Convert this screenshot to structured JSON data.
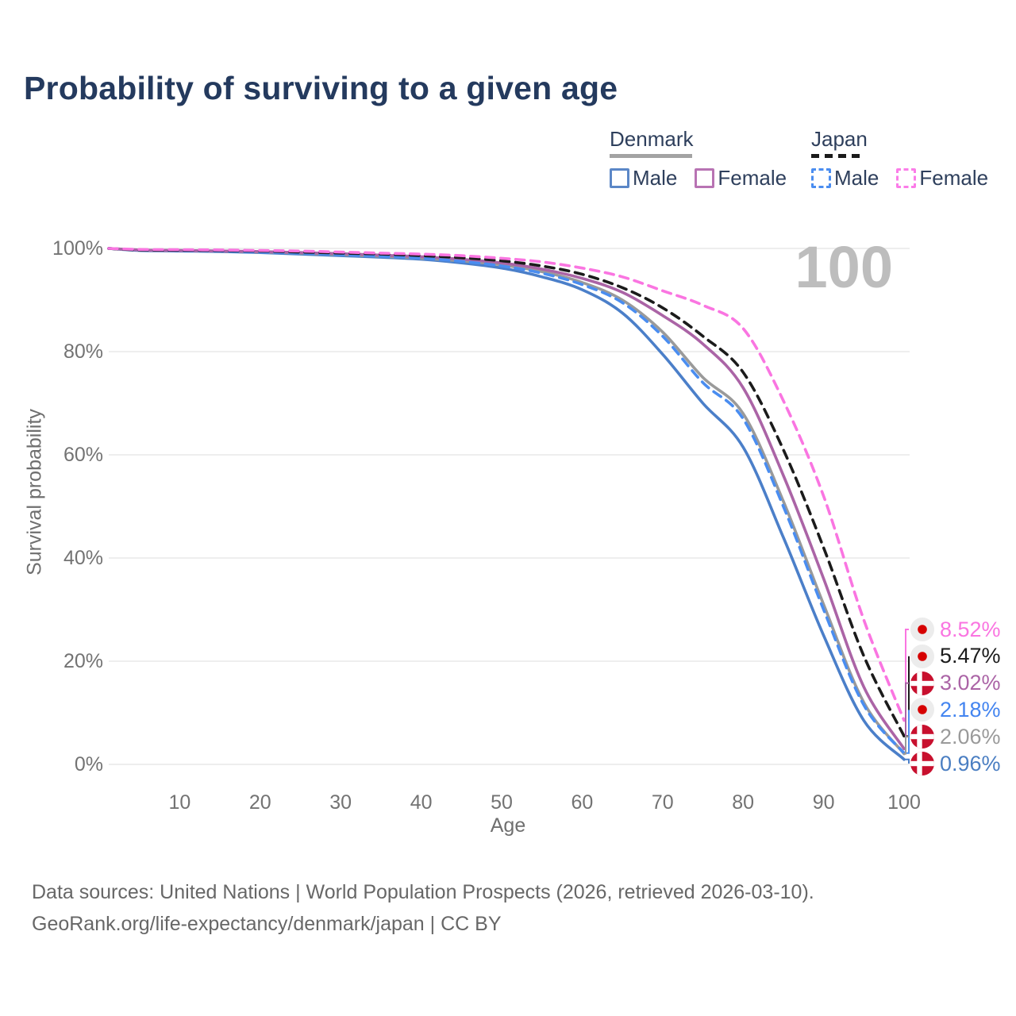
{
  "title": "Probability of surviving to a given age",
  "watermark_age": "100",
  "legend": {
    "groups": [
      {
        "country": "Denmark",
        "line_style": "solid",
        "underline_color": "#a3a3a3",
        "items": [
          {
            "label": "Male",
            "color": "#5b87c7"
          },
          {
            "label": "Female",
            "color": "#b873b3"
          }
        ]
      },
      {
        "country": "Japan",
        "line_style": "dashed",
        "underline_color": "#1b1b1b",
        "items": [
          {
            "label": "Male",
            "color": "#4a8df0"
          },
          {
            "label": "Female",
            "color": "#fb7ce8"
          }
        ]
      }
    ]
  },
  "axes": {
    "y_label": "Survival probability",
    "x_label": "Age",
    "y_ticks": [
      "100%",
      "80%",
      "60%",
      "40%",
      "20%",
      "0%"
    ],
    "y_tick_values": [
      100,
      80,
      60,
      40,
      20,
      0
    ],
    "x_ticks": [
      "10",
      "20",
      "30",
      "40",
      "50",
      "60",
      "70",
      "80",
      "90",
      "100"
    ],
    "x_tick_values": [
      10,
      20,
      30,
      40,
      50,
      60,
      70,
      80,
      90,
      100
    ],
    "gridline_color": "#e8e8e8"
  },
  "chart_data": {
    "type": "line",
    "title": "Probability of surviving to a given age",
    "xlabel": "Age",
    "ylabel": "Survival probability",
    "xlim": [
      0,
      100
    ],
    "ylim": [
      0,
      100
    ],
    "grid": "horizontal",
    "x": [
      0,
      5,
      10,
      15,
      20,
      25,
      30,
      35,
      40,
      45,
      50,
      55,
      60,
      65,
      70,
      75,
      80,
      85,
      90,
      95,
      100
    ],
    "series": [
      {
        "name": "Denmark Male",
        "country": "denmark",
        "color": "#4b7fc9",
        "dash": "solid",
        "values": [
          100,
          99.6,
          99.5,
          99.4,
          99.2,
          98.9,
          98.6,
          98.3,
          97.9,
          97.2,
          96.2,
          94.5,
          92.0,
          87.5,
          79.5,
          70.0,
          61.5,
          44.0,
          25.0,
          8.5,
          0.96
        ]
      },
      {
        "name": "Denmark",
        "country": "denmark",
        "color": "#9a9a9a",
        "dash": "solid",
        "values": [
          100,
          99.7,
          99.6,
          99.5,
          99.3,
          99.1,
          98.8,
          98.5,
          98.1,
          97.6,
          96.8,
          95.5,
          93.4,
          90.0,
          83.8,
          75.0,
          68.0,
          51.0,
          31.0,
          12.0,
          2.06
        ]
      },
      {
        "name": "Denmark Female",
        "country": "denmark",
        "color": "#ab64a6",
        "dash": "solid",
        "values": [
          100,
          99.7,
          99.6,
          99.5,
          99.4,
          99.2,
          99.0,
          98.7,
          98.4,
          97.9,
          97.2,
          96.0,
          94.2,
          91.5,
          87.0,
          81.5,
          73.0,
          56.0,
          36.0,
          15.0,
          3.02
        ]
      },
      {
        "name": "Japan Male",
        "country": "japan",
        "color": "#4a8df0",
        "dash": "dashed",
        "values": [
          100,
          99.7,
          99.6,
          99.5,
          99.3,
          99.1,
          98.8,
          98.5,
          98.1,
          97.5,
          96.6,
          95.2,
          93.0,
          89.5,
          83.0,
          74.0,
          67.0,
          50.0,
          30.0,
          11.5,
          2.18
        ]
      },
      {
        "name": "Japan",
        "country": "japan",
        "color": "#1b1b1b",
        "dash": "dashed",
        "values": [
          100,
          99.7,
          99.65,
          99.6,
          99.5,
          99.3,
          99.1,
          98.9,
          98.6,
          98.2,
          97.6,
          96.6,
          95.0,
          92.4,
          88.5,
          83.0,
          76.0,
          61.0,
          42.0,
          21.0,
          5.47
        ]
      },
      {
        "name": "Japan Female",
        "country": "japan",
        "color": "#fa75e1",
        "dash": "dashed",
        "values": [
          100,
          99.8,
          99.75,
          99.7,
          99.6,
          99.5,
          99.3,
          99.1,
          98.9,
          98.6,
          98.1,
          97.4,
          96.2,
          94.5,
          91.8,
          89.0,
          84.5,
          70.5,
          52.0,
          28.0,
          8.52
        ]
      }
    ],
    "end_labels": [
      {
        "value": "8.52%",
        "series": "Japan Female",
        "flag": "japan",
        "color": "#fa75e1"
      },
      {
        "value": "5.47%",
        "series": "Japan",
        "flag": "japan",
        "color": "#1b1b1b"
      },
      {
        "value": "3.02%",
        "series": "Denmark Female",
        "flag": "denmark",
        "color": "#ab64a6"
      },
      {
        "value": "2.18%",
        "series": "Japan Male",
        "flag": "japan",
        "color": "#4485f0"
      },
      {
        "value": "2.06%",
        "series": "Denmark",
        "flag": "denmark",
        "color": "#9a9a9a"
      },
      {
        "value": "0.96%",
        "series": "Denmark Male",
        "flag": "denmark",
        "color": "#4a7ec2"
      }
    ],
    "flag_colors": {
      "denmark_red": "#c8102e",
      "japan_red": "#d60000",
      "japan_bg": "#ececec",
      "cross_white": "#ffffff"
    }
  },
  "footer": {
    "line1": "Data sources: United Nations | World Population Prospects (2026, retrieved 2026-03-10).",
    "line2": "GeoRank.org/life-expectancy/denmark/japan | CC BY"
  }
}
